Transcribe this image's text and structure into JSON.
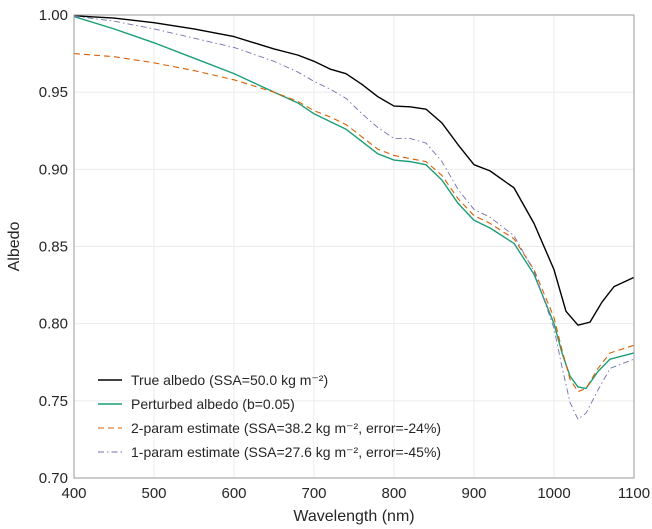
{
  "chart_data": {
    "type": "line",
    "title": "",
    "xlabel": "Wavelength (nm)",
    "ylabel": "Albedo",
    "xlim": [
      400,
      1100
    ],
    "ylim": [
      0.7,
      1.0
    ],
    "xticks": [
      400,
      500,
      600,
      700,
      800,
      900,
      1000,
      1100
    ],
    "yticks": [
      0.7,
      0.75,
      0.8,
      0.85,
      0.9,
      0.95,
      1.0
    ],
    "xtick_labels": [
      "400",
      "500",
      "600",
      "700",
      "800",
      "900",
      "1000",
      "1100"
    ],
    "ytick_labels": [
      "0.70",
      "0.75",
      "0.80",
      "0.85",
      "0.90",
      "0.95",
      "1.00"
    ],
    "grid": true,
    "legend_position": "bottom-left",
    "series": [
      {
        "name": "True albedo (SSA=50.0 kg m⁻²)",
        "color": "#000000",
        "dash": "solid",
        "x": [
          400,
          450,
          500,
          550,
          600,
          650,
          680,
          700,
          720,
          740,
          760,
          780,
          800,
          820,
          840,
          860,
          880,
          900,
          920,
          950,
          975,
          1000,
          1015,
          1030,
          1045,
          1060,
          1075,
          1100
        ],
        "y": [
          0.9995,
          0.998,
          0.995,
          0.991,
          0.986,
          0.978,
          0.974,
          0.97,
          0.965,
          0.962,
          0.955,
          0.947,
          0.941,
          0.9405,
          0.939,
          0.93,
          0.916,
          0.903,
          0.899,
          0.888,
          0.865,
          0.835,
          0.808,
          0.799,
          0.801,
          0.814,
          0.824,
          0.83
        ]
      },
      {
        "name": "Perturbed albedo (b=0.05)",
        "color": "#1b9e77",
        "dash": "solid",
        "x": [
          400,
          450,
          500,
          550,
          600,
          650,
          680,
          700,
          720,
          740,
          760,
          780,
          800,
          820,
          840,
          860,
          880,
          900,
          920,
          950,
          975,
          1000,
          1010,
          1020,
          1030,
          1040,
          1055,
          1070,
          1100
        ],
        "y": [
          0.999,
          0.991,
          0.982,
          0.972,
          0.962,
          0.95,
          0.943,
          0.936,
          0.931,
          0.926,
          0.918,
          0.91,
          0.906,
          0.905,
          0.903,
          0.893,
          0.878,
          0.867,
          0.862,
          0.852,
          0.832,
          0.8,
          0.781,
          0.766,
          0.759,
          0.758,
          0.769,
          0.777,
          0.781
        ]
      },
      {
        "name": "2-param estimate (SSA=38.2 kg m⁻², error=-24%)",
        "color": "#d95f02",
        "dash": "dashed",
        "x": [
          400,
          450,
          500,
          550,
          600,
          650,
          680,
          700,
          720,
          740,
          760,
          780,
          800,
          820,
          840,
          860,
          880,
          900,
          920,
          950,
          975,
          1000,
          1010,
          1020,
          1030,
          1040,
          1055,
          1070,
          1100
        ],
        "y": [
          0.975,
          0.973,
          0.969,
          0.964,
          0.958,
          0.95,
          0.944,
          0.938,
          0.934,
          0.929,
          0.921,
          0.913,
          0.909,
          0.907,
          0.905,
          0.896,
          0.881,
          0.87,
          0.865,
          0.855,
          0.835,
          0.804,
          0.783,
          0.764,
          0.756,
          0.758,
          0.771,
          0.781,
          0.786
        ]
      },
      {
        "name": "1-param estimate (SSA=27.6 kg m⁻², error=-45%)",
        "color": "#7570b3",
        "dash": "dashdot",
        "x": [
          400,
          450,
          500,
          550,
          600,
          650,
          680,
          700,
          720,
          740,
          760,
          780,
          800,
          820,
          840,
          860,
          880,
          900,
          920,
          950,
          975,
          1000,
          1010,
          1020,
          1030,
          1040,
          1055,
          1070,
          1100
        ],
        "y": [
          0.9993,
          0.996,
          0.991,
          0.985,
          0.979,
          0.97,
          0.963,
          0.957,
          0.952,
          0.946,
          0.936,
          0.927,
          0.92,
          0.92,
          0.917,
          0.905,
          0.887,
          0.874,
          0.869,
          0.857,
          0.834,
          0.797,
          0.772,
          0.749,
          0.738,
          0.742,
          0.757,
          0.771,
          0.777
        ]
      }
    ]
  }
}
